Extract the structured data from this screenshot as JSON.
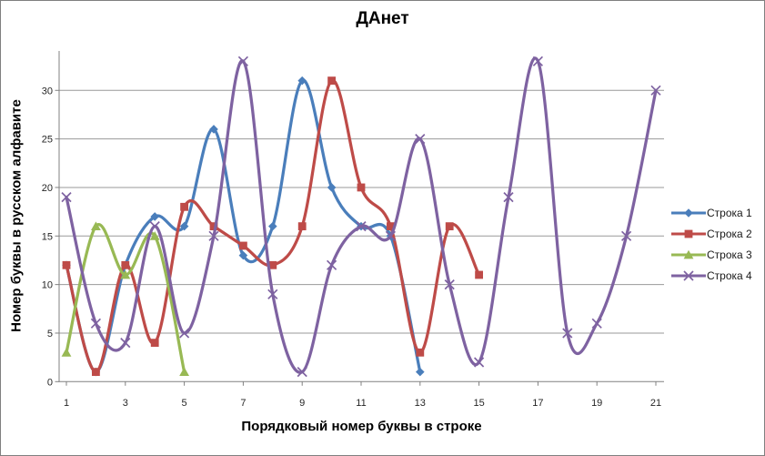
{
  "chart_data": {
    "type": "line",
    "smooth": true,
    "grid": true,
    "legend_position": "right",
    "title": "ДАнет",
    "xlabel": "Порядковый номер буквы в строке",
    "ylabel": "Номер буквы в русском алфавите",
    "x_ticks": [
      1,
      3,
      5,
      7,
      9,
      11,
      13,
      15,
      17,
      19,
      21
    ],
    "y_ticks": [
      0,
      5,
      10,
      15,
      20,
      25,
      30
    ],
    "xlim": [
      1,
      21
    ],
    "ylim": [
      0,
      34
    ],
    "axis_color": "#808080",
    "gridline_color": "#999999",
    "series": [
      {
        "name": "Строка 1",
        "color": "#4A7EBB",
        "marker": "diamond",
        "points": [
          [
            1,
            12
          ],
          [
            2,
            1
          ],
          [
            3,
            12
          ],
          [
            4,
            17
          ],
          [
            5,
            16
          ],
          [
            6,
            26
          ],
          [
            7,
            13
          ],
          [
            8,
            16
          ],
          [
            9,
            31
          ],
          [
            10,
            20
          ],
          [
            11,
            16
          ],
          [
            12,
            15
          ],
          [
            13,
            1
          ]
        ]
      },
      {
        "name": "Строка 2",
        "color": "#BE4B48",
        "marker": "square",
        "points": [
          [
            1,
            12
          ],
          [
            2,
            1
          ],
          [
            3,
            12
          ],
          [
            4,
            4
          ],
          [
            5,
            18
          ],
          [
            6,
            16
          ],
          [
            7,
            14
          ],
          [
            8,
            12
          ],
          [
            9,
            16
          ],
          [
            10,
            31
          ],
          [
            11,
            20
          ],
          [
            12,
            16
          ],
          [
            13,
            3
          ],
          [
            14,
            16
          ],
          [
            15,
            11
          ]
        ]
      },
      {
        "name": "Строка 3",
        "color": "#98B954",
        "marker": "triangle",
        "points": [
          [
            1,
            3
          ],
          [
            2,
            16
          ],
          [
            3,
            11
          ],
          [
            4,
            15
          ],
          [
            5,
            1
          ]
        ]
      },
      {
        "name": "Строка 4",
        "color": "#7E62A1",
        "marker": "x",
        "points": [
          [
            1,
            19
          ],
          [
            2,
            6
          ],
          [
            3,
            4
          ],
          [
            4,
            16
          ],
          [
            5,
            5
          ],
          [
            6,
            15
          ],
          [
            7,
            33
          ],
          [
            8,
            9
          ],
          [
            9,
            1
          ],
          [
            10,
            12
          ],
          [
            11,
            16
          ],
          [
            12,
            15
          ],
          [
            13,
            25
          ],
          [
            14,
            10
          ],
          [
            15,
            2
          ],
          [
            16,
            19
          ],
          [
            17,
            33
          ],
          [
            18,
            5
          ],
          [
            19,
            6
          ],
          [
            20,
            15
          ],
          [
            21,
            30
          ]
        ]
      }
    ]
  }
}
